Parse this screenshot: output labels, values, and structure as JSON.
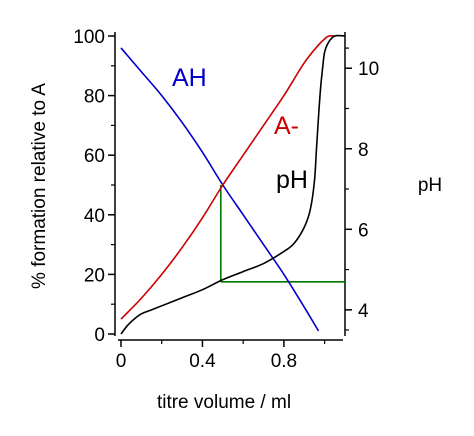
{
  "chart_data": {
    "type": "line",
    "xlabel": "titre volume / ml",
    "ylabel_left": "% formation relative to A",
    "ylabel_right": "pH",
    "xlim": [
      0,
      1.1
    ],
    "ylim_left": [
      0,
      100
    ],
    "ylim_right": [
      3.4,
      10.8
    ],
    "x_ticks": [
      0,
      0.4,
      0.8
    ],
    "x_tick_labels": [
      "0",
      "0.4",
      "0.8"
    ],
    "y_left_ticks": [
      0,
      20,
      40,
      60,
      80,
      100
    ],
    "y_left_tick_labels": [
      "0",
      "20",
      "40",
      "60",
      "80",
      "100"
    ],
    "y_right_ticks": [
      4,
      6,
      8,
      10
    ],
    "y_right_tick_labels": [
      "4",
      "6",
      "8",
      "10"
    ],
    "grid": false,
    "series": [
      {
        "name": "AH",
        "color": "#0000cc",
        "axis": "left",
        "x": [
          0,
          0.1,
          0.2,
          0.3,
          0.4,
          0.5,
          0.6,
          0.7,
          0.8,
          0.9,
          0.97
        ],
        "y": [
          96,
          88,
          80,
          71,
          61,
          50,
          40,
          30,
          20,
          9,
          1
        ]
      },
      {
        "name": "A-",
        "color": "#cc0000",
        "axis": "left",
        "x": [
          0,
          0.1,
          0.2,
          0.3,
          0.4,
          0.5,
          0.6,
          0.7,
          0.8,
          0.9,
          0.97,
          1.0,
          1.02,
          1.05
        ],
        "y": [
          5,
          12,
          20,
          29,
          39,
          50,
          60,
          70,
          80,
          91,
          97,
          99,
          100,
          100
        ]
      },
      {
        "name": "pH",
        "color": "#000000",
        "axis": "right",
        "x": [
          0,
          0.03,
          0.06,
          0.1,
          0.15,
          0.2,
          0.3,
          0.4,
          0.5,
          0.6,
          0.7,
          0.8,
          0.85,
          0.9,
          0.93,
          0.95,
          0.96,
          0.97,
          0.98,
          0.99,
          1.0,
          1.02,
          1.05,
          1.1
        ],
        "y": [
          3.4,
          3.6,
          3.75,
          3.9,
          4.0,
          4.1,
          4.3,
          4.5,
          4.75,
          4.95,
          5.15,
          5.45,
          5.65,
          6.05,
          6.5,
          7.2,
          8.0,
          8.8,
          9.5,
          10.0,
          10.4,
          10.65,
          10.8,
          10.8
        ]
      }
    ],
    "annotation_lines": [
      {
        "color": "#007700",
        "x": [
          0.49,
          0.49
        ],
        "y_left": [
          17.5,
          50
        ]
      },
      {
        "color": "#007700",
        "x": [
          0.49,
          1.1
        ],
        "y_left": [
          17.5,
          17.5
        ]
      }
    ]
  }
}
